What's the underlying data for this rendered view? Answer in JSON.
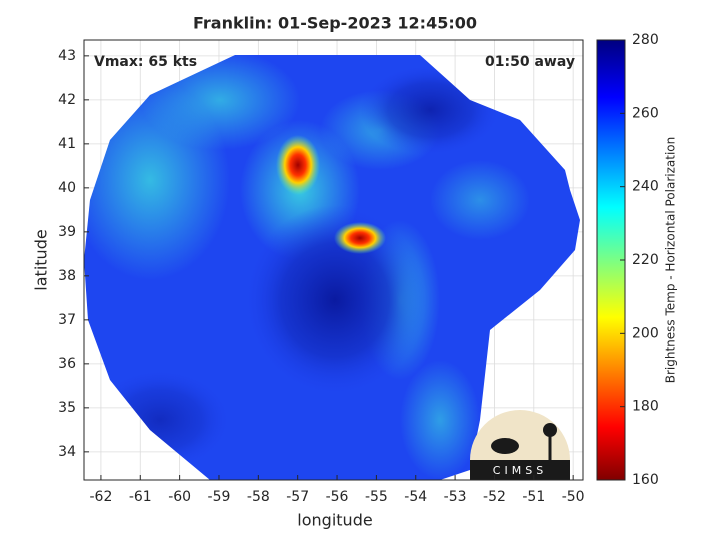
{
  "chart_data": {
    "type": "image-map",
    "title": "Franklin: 01-Sep-2023 12:45:00",
    "annotations": [
      "Vmax: 65 kts",
      "01:50 away"
    ],
    "x_label": "longitude",
    "y_label": "latitude",
    "xlim": [
      -62.43,
      -49.75
    ],
    "ylim": [
      33.36,
      43.36
    ],
    "xticks": [
      -62,
      -61,
      -60,
      -59,
      -58,
      -57,
      -56,
      -55,
      -54,
      -53,
      -52,
      -51,
      -50
    ],
    "yticks": [
      34,
      35,
      36,
      37,
      38,
      39,
      40,
      41,
      42,
      43
    ],
    "grid": true,
    "colorbar": {
      "label": "Brightness Temp - Horizontal Polarization",
      "lim": [
        160,
        280
      ],
      "ticks": [
        160,
        180,
        200,
        220,
        240,
        260,
        280
      ]
    },
    "logo": "CIMSS"
  }
}
